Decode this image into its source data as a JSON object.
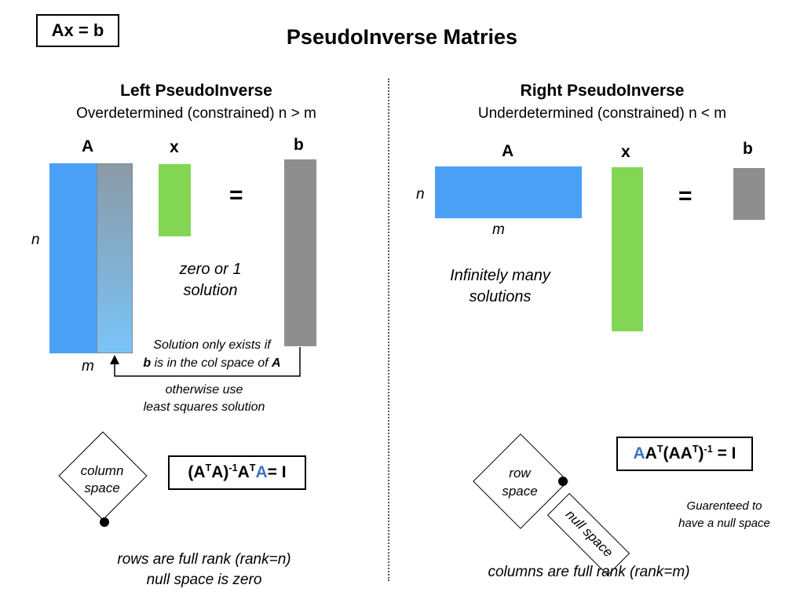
{
  "corner_label": "Ax = b",
  "title": "PseudoInverse Matries",
  "left": {
    "heading": "Left PseudoInverse",
    "subheading": "Overdetermined (constrained) n > m",
    "label_A": "A",
    "label_x": "x",
    "label_b": "b",
    "equals": "=",
    "label_n": "n",
    "label_m": "m",
    "solution_line1": "zero or 1",
    "solution_line2": "solution",
    "exists_line1": "Solution only exists if",
    "exists_b": "b",
    "exists_mid": " is in the col space of ",
    "exists_A": "A",
    "otherwise_line1": "otherwise use",
    "otherwise_line2": "least squares solution",
    "diamond_line1": "column",
    "diamond_line2": "space",
    "formula_p1": "(A",
    "formula_sup1": "T",
    "formula_p2": "A)",
    "formula_sup2": "-1",
    "formula_p3": "A",
    "formula_sup3": "T",
    "formula_blue": "A",
    "formula_end": "= I",
    "footer_line1": "rows are full rank (rank=n)",
    "footer_line2": "null space is zero"
  },
  "right": {
    "heading": "Right PseudoInverse",
    "subheading": "Underdetermined (constrained) n < m",
    "label_A": "A",
    "label_x": "x",
    "label_b": "b",
    "equals": "=",
    "label_n": "n",
    "label_m": "m",
    "solution_line1": "Infinitely many",
    "solution_line2": "solutions",
    "diamond_line1": "row",
    "diamond_line2": "space",
    "null_label": "null space",
    "formula_blue": "A",
    "formula_p1": "A",
    "formula_sup1": "T",
    "formula_p2": "(AA",
    "formula_sup2": "T",
    "formula_p3": ")",
    "formula_sup3": "-1",
    "formula_end": " = I",
    "guarantee_line1": "Guarenteed to",
    "guarantee_line2": "have a null space",
    "footer": "columns are full rank (rank=m)"
  },
  "colors": {
    "blue": "#4aa0f5",
    "green": "#82d653",
    "gray": "#8e8e8e",
    "gradient_top": "#8b9aa6",
    "gradient_bottom": "#79c4f8",
    "formula_blue": "#3b74c2"
  }
}
